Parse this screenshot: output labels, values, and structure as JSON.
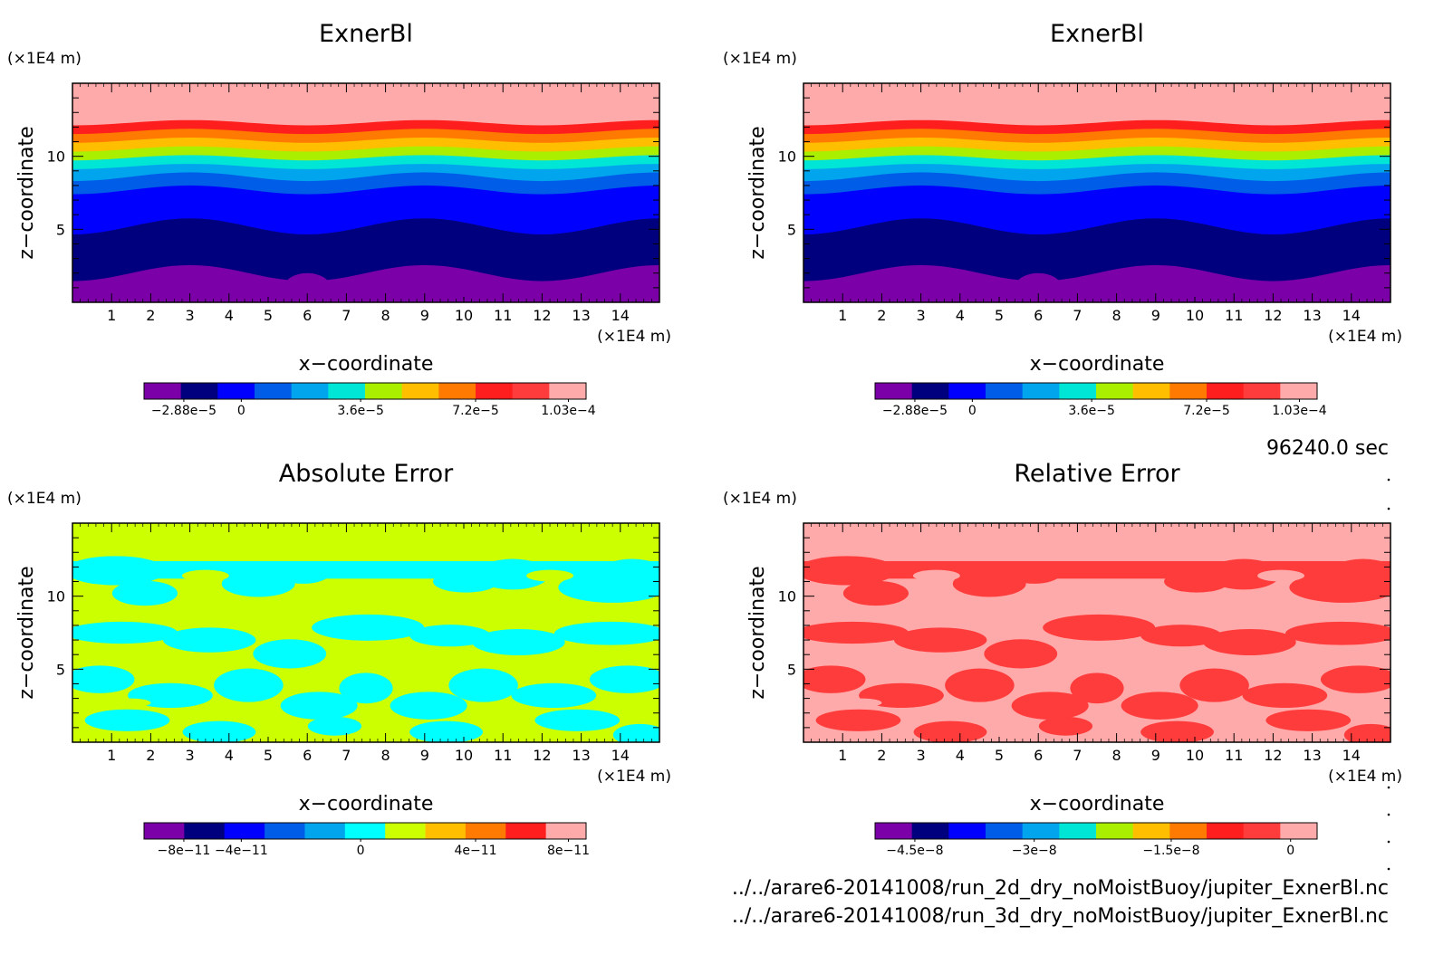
{
  "figure": {
    "time_label": "96240.0 sec",
    "footer_lines": [
      "../../arare6-20141008/run_2d_dry_noMoistBuoy/jupiter_ExnerBl.nc",
      "../../arare6-20141008/run_3d_dry_noMoistBuoy/jupiter_ExnerBl.nc"
    ]
  },
  "panels": [
    {
      "title": "ExnerBl",
      "xlabel": "x−coordinate",
      "ylabel": "z−coordinate",
      "x_unit": "(×1E4 m)",
      "z_unit": "(×1E4 m)",
      "x_ticks": [
        "1",
        "2",
        "3",
        "4",
        "5",
        "6",
        "7",
        "8",
        "9",
        "10",
        "11",
        "12",
        "13",
        "14"
      ],
      "z_ticks": [
        "5",
        "10"
      ],
      "colorbar_labels": [
        "−2.88e−5",
        "0",
        "3.6e−5",
        "7.2e−5",
        "1.03e−4"
      ]
    },
    {
      "title": "ExnerBl",
      "xlabel": "x−coordinate",
      "ylabel": "z−coordinate",
      "x_unit": "(×1E4 m)",
      "z_unit": "(×1E4 m)",
      "x_ticks": [
        "1",
        "2",
        "3",
        "4",
        "5",
        "6",
        "7",
        "8",
        "9",
        "10",
        "11",
        "12",
        "13",
        "14"
      ],
      "z_ticks": [
        "5",
        "10"
      ],
      "colorbar_labels": [
        "−2.88e−5",
        "0",
        "3.6e−5",
        "7.2e−5",
        "1.03e−4"
      ]
    },
    {
      "title": "Absolute Error",
      "xlabel": "x−coordinate",
      "ylabel": "z−coordinate",
      "x_unit": "(×1E4 m)",
      "z_unit": "(×1E4 m)",
      "x_ticks": [
        "1",
        "2",
        "3",
        "4",
        "5",
        "6",
        "7",
        "8",
        "9",
        "10",
        "11",
        "12",
        "13",
        "14"
      ],
      "z_ticks": [
        "5",
        "10"
      ],
      "colorbar_labels": [
        "−8e−11",
        "−4e−11",
        "0",
        "4e−11",
        "8e−11"
      ]
    },
    {
      "title": "Relative Error",
      "xlabel": "x−coordinate",
      "ylabel": "z−coordinate",
      "x_unit": "(×1E4 m)",
      "z_unit": "(×1E4 m)",
      "x_ticks": [
        "1",
        "2",
        "3",
        "4",
        "5",
        "6",
        "7",
        "8",
        "9",
        "10",
        "11",
        "12",
        "13",
        "14"
      ],
      "z_ticks": [
        "5",
        "10"
      ],
      "colorbar_labels": [
        "−4.5e−8",
        "−3e−8",
        "−1.5e−8",
        "0"
      ]
    }
  ],
  "chart_data": [
    {
      "type": "heatmap",
      "title": "ExnerBl",
      "xlabel": "x−coordinate",
      "ylabel": "z−coordinate",
      "xlim": [
        0,
        15
      ],
      "ylim": [
        0,
        15
      ],
      "x_ticks": [
        1,
        2,
        3,
        4,
        5,
        6,
        7,
        8,
        9,
        10,
        11,
        12,
        13,
        14
      ],
      "z_ticks": [
        5,
        10
      ],
      "colormap": [
        "#7b00a8",
        "#00007f",
        "#0000ff",
        "#005de8",
        "#00a5ee",
        "#00e6d6",
        "#aaee00",
        "#ffbf00",
        "#ff7a00",
        "#ff1e1e",
        "#ff3c3c",
        "#ffaaaa"
      ],
      "colorbar_ticks": [
        -2.88e-05,
        0,
        3.6e-05,
        7.2e-05,
        0.000103
      ],
      "bands": [
        {
          "color": "#7b00a8",
          "z_top": 2.0
        },
        {
          "color": "#00007f",
          "z_top": 5.2
        },
        {
          "color": "#0000ff",
          "z_top": 7.7
        },
        {
          "color": "#005de8",
          "z_top": 8.6
        },
        {
          "color": "#00a5ee",
          "z_top": 9.3
        },
        {
          "color": "#00e6d6",
          "z_top": 9.9
        },
        {
          "color": "#aaee00",
          "z_top": 10.5
        },
        {
          "color": "#ffbf00",
          "z_top": 11.1
        },
        {
          "color": "#ff7a00",
          "z_top": 11.7
        },
        {
          "color": "#ff1e1e",
          "z_top": 12.3
        },
        {
          "color": "#ffaaaa",
          "z_top": 15.0
        }
      ],
      "blobs_x": [
        6.0,
        9.0
      ]
    },
    {
      "type": "heatmap",
      "title": "ExnerBl",
      "xlabel": "x−coordinate",
      "ylabel": "z−coordinate",
      "xlim": [
        0,
        15
      ],
      "ylim": [
        0,
        15
      ],
      "x_ticks": [
        1,
        2,
        3,
        4,
        5,
        6,
        7,
        8,
        9,
        10,
        11,
        12,
        13,
        14
      ],
      "z_ticks": [
        5,
        10
      ],
      "colormap": [
        "#7b00a8",
        "#00007f",
        "#0000ff",
        "#005de8",
        "#00a5ee",
        "#00e6d6",
        "#aaee00",
        "#ffbf00",
        "#ff7a00",
        "#ff1e1e",
        "#ff3c3c",
        "#ffaaaa"
      ],
      "colorbar_ticks": [
        -2.88e-05,
        0,
        3.6e-05,
        7.2e-05,
        0.000103
      ],
      "bands": [
        {
          "color": "#7b00a8",
          "z_top": 2.0
        },
        {
          "color": "#00007f",
          "z_top": 5.2
        },
        {
          "color": "#0000ff",
          "z_top": 7.7
        },
        {
          "color": "#005de8",
          "z_top": 8.6
        },
        {
          "color": "#00a5ee",
          "z_top": 9.3
        },
        {
          "color": "#00e6d6",
          "z_top": 9.9
        },
        {
          "color": "#aaee00",
          "z_top": 10.5
        },
        {
          "color": "#ffbf00",
          "z_top": 11.1
        },
        {
          "color": "#ff7a00",
          "z_top": 11.7
        },
        {
          "color": "#ff1e1e",
          "z_top": 12.3
        },
        {
          "color": "#ffaaaa",
          "z_top": 15.0
        }
      ],
      "blobs_x": [
        6.0,
        9.0
      ]
    },
    {
      "type": "heatmap",
      "title": "Absolute Error",
      "xlabel": "x−coordinate",
      "ylabel": "z−coordinate",
      "xlim": [
        0,
        15
      ],
      "ylim": [
        0,
        15
      ],
      "x_ticks": [
        1,
        2,
        3,
        4,
        5,
        6,
        7,
        8,
        9,
        10,
        11,
        12,
        13,
        14
      ],
      "z_ticks": [
        5,
        10
      ],
      "colormap": [
        "#7b00a8",
        "#00007f",
        "#0000ff",
        "#005de8",
        "#00a5ee",
        "#00ffff",
        "#ccff00",
        "#ffbf00",
        "#ff7a00",
        "#ff1e1e",
        "#ffaaaa"
      ],
      "colorbar_ticks": [
        -8e-11,
        -4e-11,
        0,
        4e-11,
        8e-11
      ],
      "background_color": "#ccff00",
      "pattern_color": "#00ffff"
    },
    {
      "type": "heatmap",
      "title": "Relative Error",
      "xlabel": "x−coordinate",
      "ylabel": "z−coordinate",
      "xlim": [
        0,
        15
      ],
      "ylim": [
        0,
        15
      ],
      "x_ticks": [
        1,
        2,
        3,
        4,
        5,
        6,
        7,
        8,
        9,
        10,
        11,
        12,
        13,
        14
      ],
      "z_ticks": [
        5,
        10
      ],
      "colormap": [
        "#7b00a8",
        "#00007f",
        "#0000ff",
        "#005de8",
        "#00a5ee",
        "#00e6d6",
        "#aaee00",
        "#ffbf00",
        "#ff7a00",
        "#ff1e1e",
        "#ff3c3c",
        "#ffaaaa"
      ],
      "colorbar_ticks": [
        -4.5e-08,
        -3e-08,
        -1.5e-08,
        0
      ],
      "background_color": "#ffaaaa",
      "pattern_color": "#ff3c3c"
    }
  ]
}
